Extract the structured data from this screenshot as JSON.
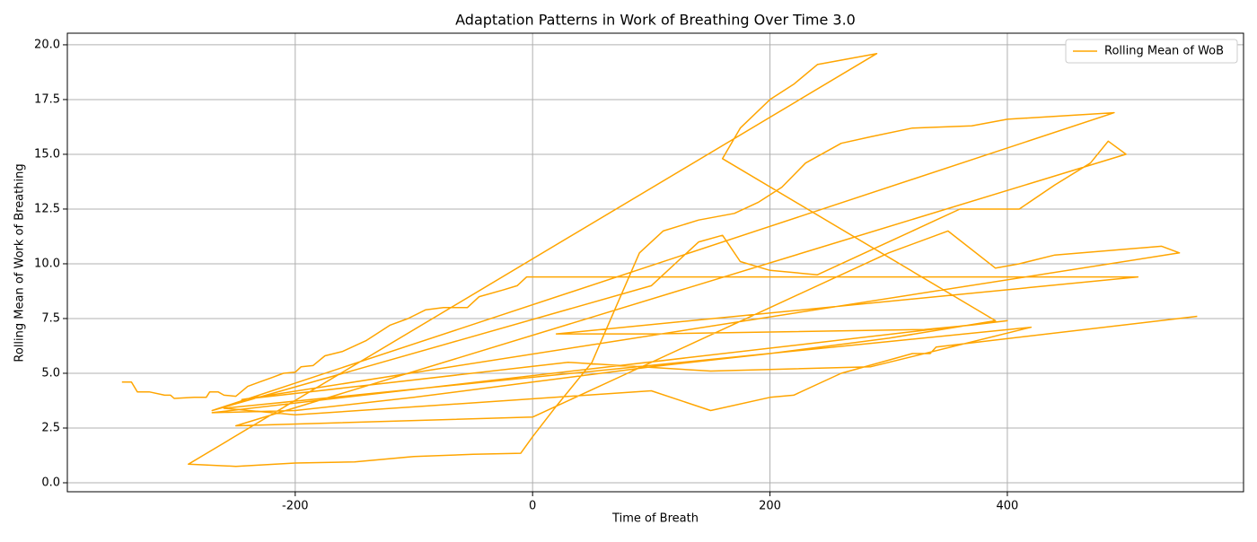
{
  "chart_data": {
    "type": "line",
    "title": "Adaptation Patterns in Work of Breathing Over Time 3.0",
    "xlabel": "Time of Breath",
    "ylabel": "Rolling Mean of Work of Breathing",
    "x": [
      -346,
      -338,
      -333,
      -323,
      -310,
      -305,
      -302,
      -285,
      -275,
      -272,
      -265,
      -260,
      -250,
      -240,
      -230,
      -220,
      -210,
      -200,
      -195,
      -185,
      -175,
      -160,
      -140,
      -120,
      -105,
      -90,
      -75,
      -55,
      -45,
      -25,
      -13,
      -5,
      0,
      510,
      20,
      100,
      330,
      370,
      400,
      -270,
      -200,
      -100,
      0,
      100,
      200,
      300,
      390,
      160,
      175,
      200,
      220,
      240,
      290,
      -290,
      -250,
      -200,
      -150,
      -100,
      -50,
      -10,
      0,
      20,
      50,
      70,
      90,
      110,
      140,
      170,
      190,
      210,
      230,
      260,
      285,
      320,
      370,
      400,
      490,
      -270,
      100,
      140,
      160,
      175,
      200,
      240,
      300,
      340,
      360,
      410,
      440,
      470,
      485,
      500,
      -250,
      0,
      80,
      200,
      300,
      350,
      390,
      410,
      440,
      530,
      545,
      -245,
      30,
      150,
      285,
      420,
      -260,
      -200,
      100,
      150,
      200,
      220,
      260,
      320,
      335,
      340,
      560
    ],
    "series": [
      {
        "name": "Rolling Mean of WoB",
        "color": "#ffa500",
        "values": [
          4.6,
          4.6,
          4.15,
          4.15,
          4.0,
          4.0,
          3.85,
          3.9,
          3.9,
          4.15,
          4.15,
          4.0,
          3.95,
          4.4,
          4.6,
          4.8,
          5.0,
          5.05,
          5.3,
          5.35,
          5.8,
          6.0,
          6.5,
          7.2,
          7.5,
          7.9,
          8.0,
          8.0,
          8.5,
          8.8,
          9.0,
          9.4,
          9.4,
          9.4,
          6.8,
          6.8,
          7.0,
          7.2,
          7.4,
          3.2,
          3.3,
          3.9,
          4.6,
          5.3,
          5.9,
          6.6,
          7.4,
          14.8,
          16.2,
          17.5,
          18.2,
          19.1,
          19.6,
          0.85,
          0.75,
          0.9,
          0.95,
          1.2,
          1.3,
          1.35,
          2.1,
          3.5,
          5.5,
          8.0,
          10.5,
          11.5,
          12.0,
          12.3,
          12.8,
          13.5,
          14.6,
          15.5,
          15.8,
          16.2,
          16.3,
          16.6,
          16.9,
          3.3,
          9.0,
          11.0,
          11.3,
          10.1,
          9.7,
          9.5,
          11.0,
          12.0,
          12.5,
          12.5,
          13.6,
          14.6,
          15.6,
          15.0,
          2.6,
          3.0,
          5.0,
          8.0,
          10.5,
          11.5,
          9.8,
          10.0,
          10.4,
          10.8,
          10.5,
          3.8,
          5.5,
          5.1,
          5.3,
          7.1,
          3.4,
          3.1,
          4.2,
          3.3,
          3.9,
          4.0,
          5.0,
          5.9,
          5.9,
          6.2,
          7.6
        ]
      }
    ],
    "xlim": [
      -392,
      599
    ],
    "ylim": [
      -0.41,
      20.53
    ],
    "xticks": [
      -200,
      0,
      200,
      400
    ],
    "yticks": [
      {
        "value": 0,
        "label": "0.0"
      },
      2.5,
      {
        "value": 5,
        "label": "5.0"
      },
      7.5,
      {
        "value": 10,
        "label": "10.0"
      },
      12.5,
      {
        "value": 15,
        "label": "15.0"
      },
      17.5,
      {
        "value": 20,
        "label": "20.0"
      }
    ],
    "grid": true,
    "legend": "upper right"
  }
}
